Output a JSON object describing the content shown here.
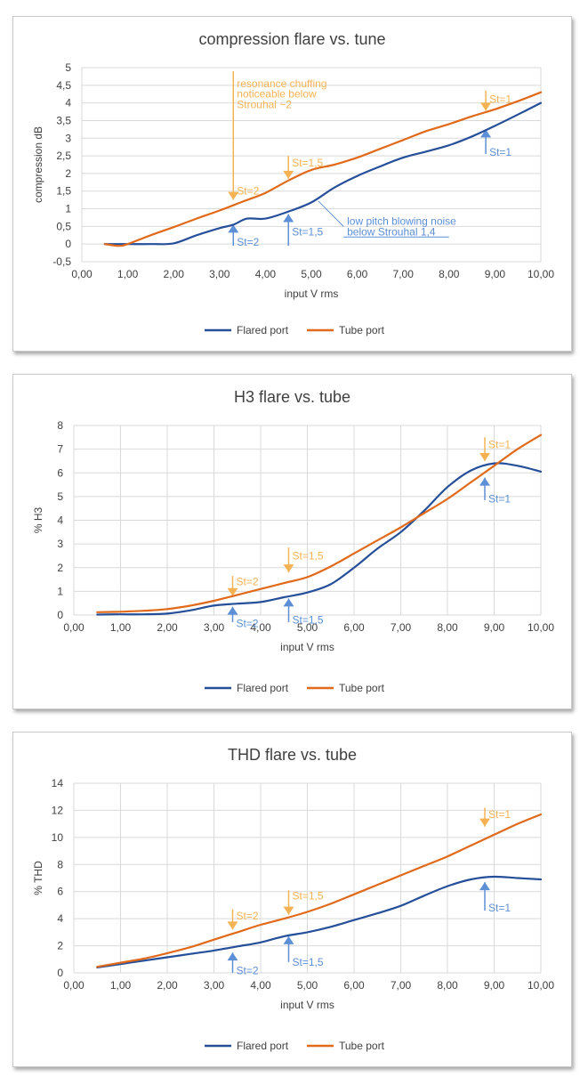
{
  "chart_data": [
    {
      "type": "line",
      "title": "compression flare vs. tune",
      "xlabel": "input V rms",
      "ylabel": "compression dB",
      "xlim": [
        0,
        10
      ],
      "ylim": [
        -0.5,
        5
      ],
      "x_ticks": [
        "0,00",
        "1,00",
        "2,00",
        "3,00",
        "4,00",
        "5,00",
        "6,00",
        "7,00",
        "8,00",
        "9,00",
        "10,00"
      ],
      "y_ticks": [
        "-0,5",
        "0",
        "0,5",
        "1",
        "1,5",
        "2",
        "2,5",
        "3",
        "3,5",
        "4",
        "4,5",
        "5"
      ],
      "y_tick_values": [
        -0.5,
        0,
        0.5,
        1,
        1.5,
        2,
        2.5,
        3,
        3.5,
        4,
        4.5,
        5
      ],
      "grid": "horizontal",
      "legend": "bottom",
      "series": [
        {
          "name": "Flared port",
          "color": "#264f9a",
          "x": [
            0.5,
            1.0,
            1.5,
            2.0,
            2.5,
            3.0,
            3.3,
            3.6,
            4.0,
            4.5,
            5.0,
            5.5,
            6.0,
            6.5,
            7.0,
            7.5,
            8.0,
            8.5,
            9.0,
            9.5,
            10.0
          ],
          "y": [
            0,
            0,
            0,
            0.02,
            0.25,
            0.45,
            0.55,
            0.72,
            0.72,
            0.92,
            1.18,
            1.6,
            1.93,
            2.2,
            2.45,
            2.62,
            2.8,
            3.05,
            3.35,
            3.67,
            4.0
          ]
        },
        {
          "name": "Tube port",
          "color": "#e06a1a",
          "x": [
            0.5,
            0.8,
            1.0,
            1.5,
            2.0,
            2.5,
            3.0,
            3.5,
            4.0,
            4.5,
            5.0,
            5.5,
            6.0,
            6.5,
            7.0,
            7.5,
            8.0,
            8.5,
            9.0,
            9.5,
            10.0
          ],
          "y": [
            0,
            -0.05,
            0,
            0.25,
            0.48,
            0.72,
            0.95,
            1.2,
            1.45,
            1.8,
            2.1,
            2.25,
            2.45,
            2.7,
            2.95,
            3.2,
            3.4,
            3.62,
            3.82,
            4.05,
            4.3
          ]
        }
      ],
      "annotations": [
        {
          "text": "resonance chuffing",
          "x": 3.3,
          "y": 4.55,
          "color": "#f5b253"
        },
        {
          "text": "noticeable  below",
          "x": 3.3,
          "y": 4.25,
          "color": "#f5b253"
        },
        {
          "text": "Strouhal  ~2",
          "x": 3.3,
          "y": 3.95,
          "color": "#f5b253"
        },
        {
          "text": "St=2",
          "x": 3.3,
          "y": 1.5,
          "color": "#f5b253"
        },
        {
          "text": "St=1,5",
          "x": 4.5,
          "y": 2.3,
          "color": "#f5b253"
        },
        {
          "text": "St=1",
          "x": 8.8,
          "y": 4.1,
          "color": "#f5b253"
        },
        {
          "text": "St=2",
          "x": 3.3,
          "y": 0.05,
          "color": "#5d8fd6"
        },
        {
          "text": "St=1,5",
          "x": 4.5,
          "y": 0.35,
          "color": "#5d8fd6"
        },
        {
          "text": "St=1",
          "x": 8.8,
          "y": 2.6,
          "color": "#5d8fd6"
        },
        {
          "text": "low pitch blowing noise",
          "x": 5.7,
          "y": 0.65,
          "color": "#5d8fd6"
        },
        {
          "text": "below Strouhal 1,4",
          "x": 5.7,
          "y": 0.35,
          "color": "#5d8fd6"
        }
      ],
      "arrows": [
        {
          "dir": "down",
          "x": 3.3,
          "from": 4.9,
          "to": 1.25,
          "color": "#f5b253"
        },
        {
          "dir": "down",
          "x": 4.5,
          "from": 2.5,
          "to": 1.85,
          "color": "#f5b253"
        },
        {
          "dir": "down",
          "x": 8.8,
          "from": 4.35,
          "to": 3.78,
          "color": "#f5b253"
        },
        {
          "dir": "up",
          "x": 3.3,
          "from": -0.05,
          "to": 0.55,
          "color": "#5d8fd6"
        },
        {
          "dir": "up",
          "x": 4.5,
          "from": -0.05,
          "to": 0.85,
          "color": "#5d8fd6"
        },
        {
          "dir": "up",
          "x": 8.8,
          "from": 2.55,
          "to": 3.25,
          "color": "#5d8fd6"
        }
      ],
      "leaders": [
        {
          "x1": 5.15,
          "y1": 1.22,
          "x2": 5.7,
          "y2": 0.5,
          "color": "#5d8fd6"
        },
        {
          "x1": 5.7,
          "y1": 0.2,
          "x2": 8.0,
          "y2": 0.2,
          "color": "#5d8fd6"
        }
      ]
    },
    {
      "type": "line",
      "title": "H3 flare vs. tube",
      "xlabel": "input V rms",
      "ylabel": "% H3",
      "xlim": [
        0,
        10
      ],
      "ylim": [
        0,
        8
      ],
      "x_ticks": [
        "0,00",
        "1,00",
        "2,00",
        "3,00",
        "4,00",
        "5,00",
        "6,00",
        "7,00",
        "8,00",
        "9,00",
        "10,00"
      ],
      "y_ticks": [
        "0",
        "1",
        "2",
        "3",
        "4",
        "5",
        "6",
        "7",
        "8"
      ],
      "y_tick_values": [
        0,
        1,
        2,
        3,
        4,
        5,
        6,
        7,
        8
      ],
      "grid": "both",
      "legend": "bottom",
      "series": [
        {
          "name": "Flared port",
          "color": "#264f9a",
          "x": [
            0.5,
            1.0,
            1.5,
            2.0,
            2.5,
            3.0,
            3.5,
            4.0,
            4.5,
            5.0,
            5.5,
            6.0,
            6.5,
            7.0,
            7.5,
            8.0,
            8.5,
            9.0,
            9.5,
            10.0
          ],
          "y": [
            0.02,
            0.03,
            0.03,
            0.06,
            0.2,
            0.4,
            0.48,
            0.55,
            0.75,
            0.95,
            1.3,
            2.0,
            2.8,
            3.5,
            4.4,
            5.4,
            6.1,
            6.4,
            6.3,
            6.05
          ]
        },
        {
          "name": "Tube port",
          "color": "#e06a1a",
          "x": [
            0.5,
            1.0,
            1.5,
            2.0,
            2.5,
            3.0,
            3.5,
            4.0,
            4.5,
            5.0,
            5.5,
            6.0,
            6.5,
            7.0,
            7.5,
            8.0,
            8.5,
            9.0,
            9.5,
            10.0
          ],
          "y": [
            0.12,
            0.14,
            0.18,
            0.25,
            0.4,
            0.6,
            0.85,
            1.1,
            1.35,
            1.6,
            2.05,
            2.6,
            3.15,
            3.7,
            4.3,
            4.9,
            5.6,
            6.3,
            7.0,
            7.6
          ]
        }
      ],
      "annotations": [
        {
          "text": "St=2",
          "x": 3.4,
          "y": 1.4,
          "color": "#f5b253"
        },
        {
          "text": "St=1,5",
          "x": 4.6,
          "y": 2.5,
          "color": "#f5b253"
        },
        {
          "text": "St=1",
          "x": 8.8,
          "y": 7.2,
          "color": "#f5b253"
        },
        {
          "text": "St=2",
          "x": 3.4,
          "y": -0.35,
          "color": "#5d8fd6"
        },
        {
          "text": "St=1,5",
          "x": 4.6,
          "y": -0.2,
          "color": "#5d8fd6"
        },
        {
          "text": "St=1",
          "x": 8.8,
          "y": 4.9,
          "color": "#5d8fd6"
        }
      ],
      "arrows": [
        {
          "dir": "down",
          "x": 3.4,
          "from": 1.65,
          "to": 0.8,
          "color": "#f5b253"
        },
        {
          "dir": "down",
          "x": 4.6,
          "from": 2.85,
          "to": 1.8,
          "color": "#f5b253"
        },
        {
          "dir": "down",
          "x": 8.8,
          "from": 7.5,
          "to": 6.5,
          "color": "#f5b253"
        },
        {
          "dir": "up",
          "x": 3.4,
          "from": -0.3,
          "to": 0.35,
          "color": "#5d8fd6"
        },
        {
          "dir": "up",
          "x": 4.6,
          "from": -0.3,
          "to": 0.7,
          "color": "#5d8fd6"
        },
        {
          "dir": "up",
          "x": 8.8,
          "from": 4.85,
          "to": 5.8,
          "color": "#5d8fd6"
        }
      ],
      "leaders": []
    },
    {
      "type": "line",
      "title": "THD flare vs. tube",
      "xlabel": "input V rms",
      "ylabel": "% THD",
      "xlim": [
        0,
        10
      ],
      "ylim": [
        0,
        14
      ],
      "x_ticks": [
        "0,00",
        "1,00",
        "2,00",
        "3,00",
        "4,00",
        "5,00",
        "6,00",
        "7,00",
        "8,00",
        "9,00",
        "10,00"
      ],
      "y_ticks": [
        "0",
        "2",
        "4",
        "6",
        "8",
        "10",
        "12",
        "14"
      ],
      "y_tick_values": [
        0,
        2,
        4,
        6,
        8,
        10,
        12,
        14
      ],
      "grid": "both",
      "legend": "bottom",
      "series": [
        {
          "name": "Flared port",
          "color": "#264f9a",
          "x": [
            0.5,
            1.0,
            1.5,
            2.0,
            2.5,
            3.0,
            3.5,
            4.0,
            4.5,
            5.0,
            5.5,
            6.0,
            6.5,
            7.0,
            7.5,
            8.0,
            8.5,
            9.0,
            9.5,
            10.0
          ],
          "y": [
            0.4,
            0.65,
            0.9,
            1.15,
            1.4,
            1.65,
            1.95,
            2.25,
            2.7,
            3.0,
            3.4,
            3.9,
            4.4,
            4.95,
            5.7,
            6.4,
            6.9,
            7.1,
            7.0,
            6.9
          ]
        },
        {
          "name": "Tube port",
          "color": "#e06a1a",
          "x": [
            0.5,
            1.0,
            1.5,
            2.0,
            2.5,
            3.0,
            3.5,
            4.0,
            4.5,
            5.0,
            5.5,
            6.0,
            6.5,
            7.0,
            7.5,
            8.0,
            8.5,
            9.0,
            9.5,
            10.0
          ],
          "y": [
            0.45,
            0.75,
            1.05,
            1.45,
            1.9,
            2.45,
            3.0,
            3.55,
            4.0,
            4.5,
            5.1,
            5.8,
            6.5,
            7.2,
            7.9,
            8.6,
            9.4,
            10.2,
            11.0,
            11.7
          ]
        }
      ],
      "annotations": [
        {
          "text": "St=2",
          "x": 3.4,
          "y": 4.2,
          "color": "#f5b253"
        },
        {
          "text": "St=1,5",
          "x": 4.6,
          "y": 5.7,
          "color": "#f5b253"
        },
        {
          "text": "St=1",
          "x": 8.8,
          "y": 11.7,
          "color": "#f5b253"
        },
        {
          "text": "St=2",
          "x": 3.4,
          "y": 0.15,
          "color": "#5d8fd6"
        },
        {
          "text": "St=1,5",
          "x": 4.6,
          "y": 0.8,
          "color": "#5d8fd6"
        },
        {
          "text": "St=1",
          "x": 8.8,
          "y": 4.8,
          "color": "#5d8fd6"
        }
      ],
      "arrows": [
        {
          "dir": "down",
          "x": 3.4,
          "from": 4.7,
          "to": 3.2,
          "color": "#f5b253"
        },
        {
          "dir": "down",
          "x": 4.6,
          "from": 6.1,
          "to": 4.3,
          "color": "#f5b253"
        },
        {
          "dir": "down",
          "x": 8.8,
          "from": 12.2,
          "to": 10.8,
          "color": "#f5b253"
        },
        {
          "dir": "up",
          "x": 3.4,
          "from": 0.0,
          "to": 1.5,
          "color": "#5d8fd6"
        },
        {
          "dir": "up",
          "x": 4.6,
          "from": 0.8,
          "to": 2.7,
          "color": "#5d8fd6"
        },
        {
          "dir": "up",
          "x": 8.8,
          "from": 4.6,
          "to": 6.7,
          "color": "#5d8fd6"
        }
      ],
      "leaders": []
    }
  ]
}
